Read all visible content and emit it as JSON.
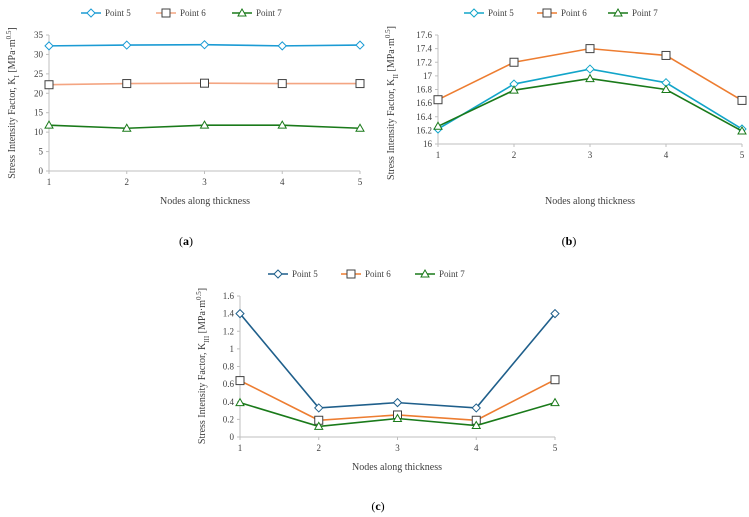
{
  "colors": {
    "axis": "#bfbfbf",
    "grid": "#d9d9d9",
    "text": "#404040"
  },
  "chart_data": [
    {
      "id": "a",
      "type": "line",
      "panel_label_pre": "(",
      "panel_label_bold": "a",
      "panel_label_post": ")",
      "xlabel": "Nodes along thickness",
      "ylabel_pre": "Stress Intensity Factor, K",
      "ylabel_sub": "I",
      "ylabel_post": " [MPa·m",
      "ylabel_sup": "0.5",
      "ylabel_end": "]",
      "x": [
        1,
        2,
        3,
        4,
        5
      ],
      "xticks": [
        "1",
        "2",
        "3",
        "4",
        "5"
      ],
      "ylim": [
        0,
        35
      ],
      "yticks": [
        0,
        5,
        10,
        15,
        20,
        25,
        30,
        35
      ],
      "ytick_labels": [
        "0",
        "5",
        "10",
        "15",
        "20",
        "25",
        "30",
        "35"
      ],
      "grid": false,
      "legend_position": "top",
      "series": [
        {
          "name": "Point 5",
          "marker": "diamond",
          "color": "#1b9bd4",
          "values": [
            32.2,
            32.4,
            32.5,
            32.2,
            32.4
          ]
        },
        {
          "name": "Point 6",
          "marker": "square",
          "color": "#f4a582",
          "values": [
            22.2,
            22.5,
            22.6,
            22.5,
            22.5
          ]
        },
        {
          "name": "Point 7",
          "marker": "triangle",
          "color": "#1a7a1a",
          "values": [
            11.8,
            11.0,
            11.8,
            11.8,
            11.0
          ]
        }
      ]
    },
    {
      "id": "b",
      "type": "line",
      "panel_label_pre": "(",
      "panel_label_bold": "b",
      "panel_label_post": ")",
      "xlabel": "Nodes along thickness",
      "ylabel_pre": "Stress Intensity Factor, K",
      "ylabel_sub": "II",
      "ylabel_post": " [MPa·m",
      "ylabel_sup": "0.5",
      "ylabel_end": "]",
      "x": [
        1,
        2,
        3,
        4,
        5
      ],
      "xticks": [
        "1",
        "2",
        "3",
        "4",
        "5"
      ],
      "ylim": [
        16,
        17.6
      ],
      "yticks": [
        16,
        16.2,
        16.4,
        16.6,
        16.8,
        17,
        17.2,
        17.4,
        17.6
      ],
      "ytick_labels": [
        "16",
        "16.2",
        "16.4",
        "16.6",
        "16.8",
        "17",
        "17.2",
        "17.4",
        "17.6"
      ],
      "grid": false,
      "legend_position": "top",
      "series": [
        {
          "name": "Point 5",
          "marker": "diamond",
          "color": "#12a5c9",
          "values": [
            16.22,
            16.88,
            17.1,
            16.9,
            16.22
          ]
        },
        {
          "name": "Point 6",
          "marker": "square",
          "color": "#ed7d31",
          "values": [
            16.65,
            17.2,
            17.4,
            17.3,
            16.64
          ]
        },
        {
          "name": "Point 7",
          "marker": "triangle",
          "color": "#1a7a1a",
          "values": [
            16.26,
            16.79,
            16.96,
            16.8,
            16.19
          ]
        }
      ]
    },
    {
      "id": "c",
      "type": "line",
      "panel_label_pre": "(",
      "panel_label_bold": "c",
      "panel_label_post": ")",
      "xlabel": "Nodes along thickness",
      "ylabel_pre": "Stress Intensity Factor, K",
      "ylabel_sub": "III",
      "ylabel_post": " [MPa·m",
      "ylabel_sup": "0.5",
      "ylabel_end": "]",
      "x": [
        1,
        2,
        3,
        4,
        5
      ],
      "xticks": [
        "1",
        "2",
        "3",
        "4",
        "5"
      ],
      "ylim": [
        0,
        1.6
      ],
      "yticks": [
        0,
        0.2,
        0.4,
        0.6,
        0.8,
        1,
        1.2,
        1.4,
        1.6
      ],
      "ytick_labels": [
        "0",
        "0.2",
        "0.4",
        "0.6",
        "0.8",
        "1",
        "1.2",
        "1.4",
        "1.6"
      ],
      "grid": false,
      "legend_position": "top",
      "series": [
        {
          "name": "Point 5",
          "marker": "diamond",
          "color": "#1f5f8b",
          "values": [
            1.4,
            0.33,
            0.39,
            0.33,
            1.4
          ]
        },
        {
          "name": "Point 6",
          "marker": "square",
          "color": "#ed7d31",
          "values": [
            0.64,
            0.19,
            0.25,
            0.19,
            0.65
          ]
        },
        {
          "name": "Point 7",
          "marker": "triangle",
          "color": "#1a7a1a",
          "values": [
            0.39,
            0.12,
            0.21,
            0.13,
            0.39
          ]
        }
      ]
    }
  ]
}
